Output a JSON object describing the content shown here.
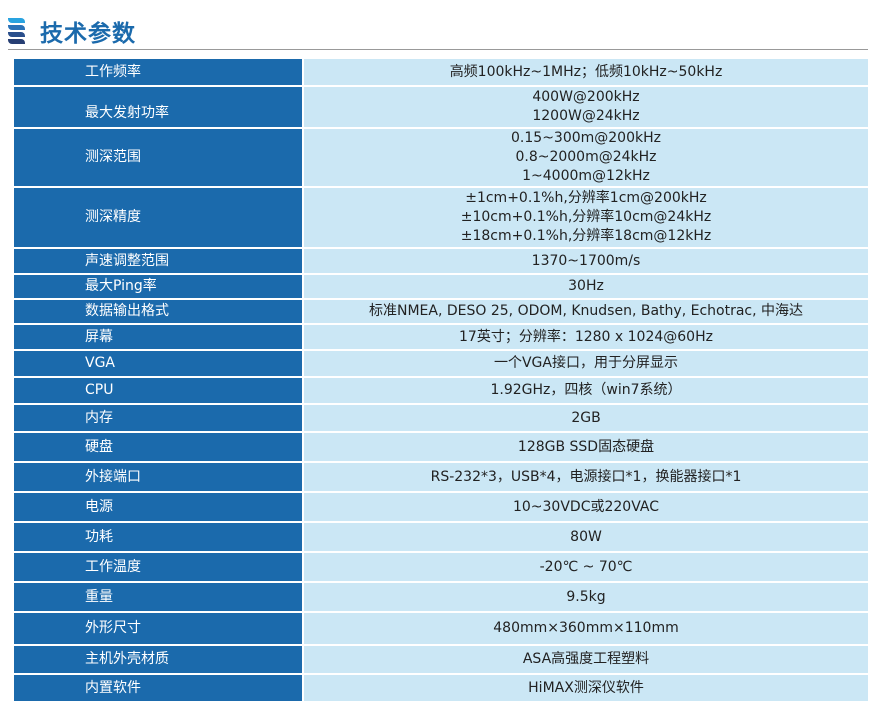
{
  "header": {
    "title": "技术参数",
    "icon": "stripes-logo-icon"
  },
  "colors": {
    "label_bg": "#1b6aac",
    "value_bg": "#cbe7f5",
    "title": "#1b6aac"
  },
  "rows": [
    {
      "label": "工作频率",
      "value": [
        "高频100kHz~1MHz；低频10kHz~50kHz"
      ]
    },
    {
      "label": "最大发射功率",
      "value": [
        "400W@200kHz",
        "1200W@24kHz"
      ]
    },
    {
      "label": "测深范围",
      "value": [
        "0.15~300m@200kHz",
        "0.8~2000m@24kHz",
        "1~4000m@12kHz"
      ]
    },
    {
      "label": "测深精度",
      "value": [
        "±1cm+0.1%h,分辨率1cm@200kHz",
        "±10cm+0.1%h,分辨率10cm@24kHz",
        "±18cm+0.1%h,分辨率18cm@12kHz"
      ]
    },
    {
      "label": "声速调整范围",
      "value": [
        "1370~1700m/s"
      ]
    },
    {
      "label": "最大Ping率",
      "value": [
        "30Hz"
      ]
    },
    {
      "label": "数据输出格式",
      "value": [
        "标准NMEA, DESO 25, ODOM, Knudsen, Bathy, Echotrac, 中海达"
      ]
    },
    {
      "label": "屏幕",
      "value": [
        "17英寸；分辨率：1280 x 1024@60Hz"
      ]
    },
    {
      "label": "VGA",
      "value": [
        "一个VGA接口，用于分屏显示"
      ]
    },
    {
      "label": "CPU",
      "value": [
        "1.92GHz，四核（win7系统）"
      ]
    },
    {
      "label": "内存",
      "value": [
        "2GB"
      ]
    },
    {
      "label": "硬盘",
      "value": [
        "128GB SSD固态硬盘"
      ]
    },
    {
      "label": "外接端口",
      "value": [
        "RS-232*3，USB*4，电源接口*1，换能器接口*1"
      ]
    },
    {
      "label": "电源",
      "value": [
        "10~30VDC或220VAC"
      ]
    },
    {
      "label": "功耗",
      "value": [
        "80W"
      ]
    },
    {
      "label": "工作温度",
      "value": [
        "-20℃ ~ 70℃"
      ]
    },
    {
      "label": "重量",
      "value": [
        "9.5kg"
      ]
    },
    {
      "label": "外形尺寸",
      "value": [
        "480mm×360mm×110mm"
      ]
    },
    {
      "label": "主机外壳材质",
      "value": [
        "ASA高强度工程塑料"
      ]
    },
    {
      "label": "内置软件",
      "value": [
        "HiMAX测深仪软件"
      ]
    }
  ]
}
